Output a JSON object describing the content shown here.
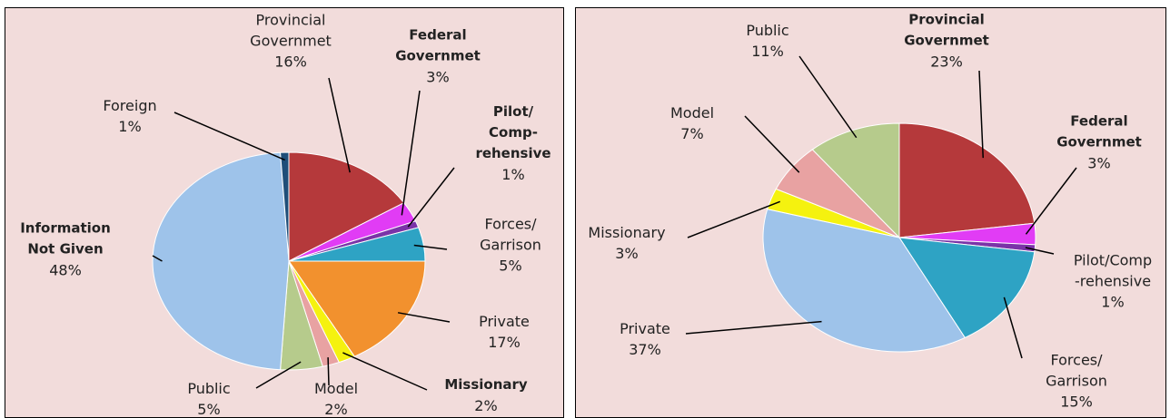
{
  "chart_data": [
    {
      "type": "pie",
      "categories": [
        "Provincial\nGovernmet",
        "Federal\nGovernmet",
        "Pilot/\nComp-\nrehensive",
        "Forces/\nGarrison",
        "Private",
        "Missionary",
        "Model",
        "Public",
        "Information\nNot Given",
        "Foreign"
      ],
      "values": [
        16,
        3,
        1,
        5,
        17,
        2,
        2,
        5,
        48,
        1
      ],
      "value_labels": [
        "16%",
        "3%",
        "1%",
        "5%",
        "17%",
        "2%",
        "2%",
        "5%",
        "48%",
        "1%"
      ],
      "colors": [
        "#b5393b",
        "#e13cf5",
        "#7a33a8",
        "#2ea3c4",
        "#f2912e",
        "#f5f20f",
        "#e8a2a2",
        "#b6cb8c",
        "#9ec3ea",
        "#1f4e79"
      ]
    },
    {
      "type": "pie",
      "categories": [
        "Provincial\nGovernmet",
        "Federal\nGovernmet",
        "Pilot/Comp\n-rehensive",
        "Forces/\nGarrison",
        "Private",
        "Missionary",
        "Model",
        "Public"
      ],
      "values": [
        23,
        3,
        1,
        15,
        37,
        3,
        7,
        11
      ],
      "value_labels": [
        "23%",
        "3%",
        "1%",
        "15%",
        "37%",
        "3%",
        "7%",
        "11%"
      ],
      "colors": [
        "#b5393b",
        "#e13cf5",
        "#7a33a8",
        "#2ea3c4",
        "#9ec3ea",
        "#f5f20f",
        "#e8a2a2",
        "#b6cb8c"
      ]
    }
  ]
}
